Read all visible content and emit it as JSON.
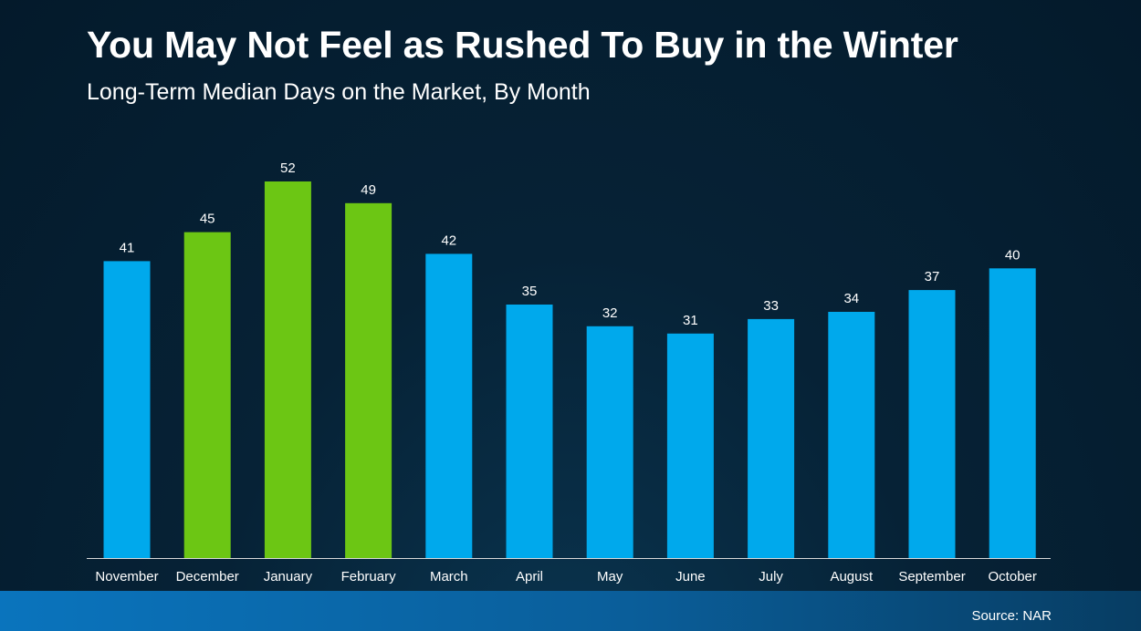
{
  "title": "You May Not Feel as Rushed To Buy in the Winter",
  "subtitle": "Long-Term Median Days on the Market, By Month",
  "source": "Source: NAR",
  "colors": {
    "winter_bar": "#6cc614",
    "other_bar": "#00a9ec",
    "axis": "#d9d9d9"
  },
  "chart_data": {
    "type": "bar",
    "title": "You May Not Feel as Rushed To Buy in the Winter",
    "subtitle": "Long-Term Median Days on the Market, By Month",
    "xlabel": "",
    "ylabel": "",
    "ylim": [
      0,
      52
    ],
    "grid": false,
    "legend": "none",
    "categories": [
      "November",
      "December",
      "January",
      "February",
      "March",
      "April",
      "May",
      "June",
      "July",
      "August",
      "September",
      "October"
    ],
    "values": [
      41,
      45,
      52,
      49,
      42,
      35,
      32,
      31,
      33,
      34,
      37,
      40
    ],
    "highlighted": [
      false,
      true,
      true,
      true,
      false,
      false,
      false,
      false,
      false,
      false,
      false,
      false
    ]
  }
}
